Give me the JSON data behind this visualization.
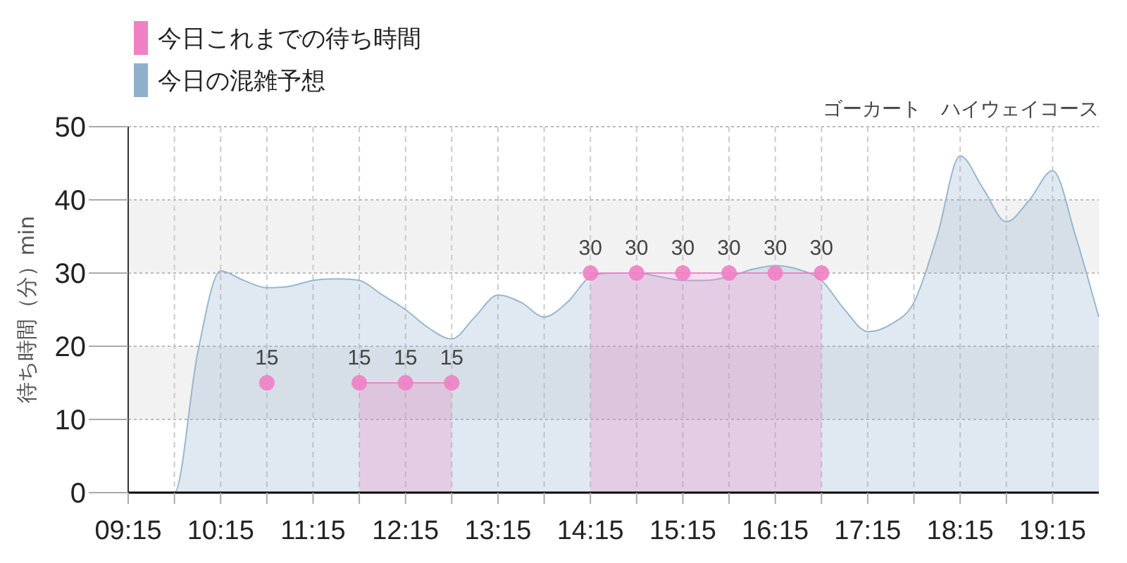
{
  "chart_data": {
    "type": "area",
    "title": "ゴーカート　ハイウェイコース",
    "ylabel": "待ち時間（分）min",
    "series": [
      {
        "type": "scatter",
        "color": "#f080c4",
        "data_labels": true,
        "x": [
          10.75
        ],
        "values": [
          15
        ]
      },
      {
        "name": "今日これまでの待ち時間",
        "color": "#f080c4",
        "marker": "circle",
        "data_labels": true,
        "x": [
          11.75,
          12.25,
          12.75,
          13.25,
          13.75,
          14.25,
          14.75,
          15.25,
          15.75,
          16.25,
          16.75
        ],
        "values": [
          15,
          15,
          15,
          null,
          null,
          30,
          30,
          30,
          30,
          30,
          30
        ]
      },
      {
        "name": "今日の混雑予想",
        "color": "#8fb0cc",
        "x": [
          9.25,
          9.5,
          9.75,
          10.0,
          10.25,
          10.5,
          10.75,
          11.0,
          11.25,
          11.5,
          11.75,
          12.0,
          12.25,
          12.5,
          12.75,
          13.0,
          13.25,
          13.5,
          13.75,
          14.0,
          14.25,
          14.5,
          14.75,
          15.0,
          15.25,
          15.5,
          15.75,
          16.0,
          16.25,
          16.5,
          16.75,
          17.0,
          17.25,
          17.5,
          17.75,
          18.0,
          18.25,
          18.5,
          18.75,
          19.0,
          19.25,
          19.5,
          19.75
        ],
        "values": [
          0,
          0,
          0,
          19,
          30.3,
          29,
          28,
          28.2,
          29,
          29.2,
          29,
          27,
          25,
          22.5,
          21,
          24,
          27,
          26,
          24,
          26,
          29.5,
          30,
          30,
          29.5,
          29,
          29,
          29.5,
          30.5,
          31,
          30.5,
          29,
          25,
          22,
          23,
          26,
          35,
          46,
          41.5,
          37,
          40,
          44,
          35,
          24
        ]
      }
    ],
    "xlim": [
      9.25,
      19.75
    ],
    "xticks": [
      {
        "value": 9.25,
        "label": "09:15"
      },
      {
        "value": 9.75,
        "label": null
      },
      {
        "value": 10.25,
        "label": "10:15"
      },
      {
        "value": 10.75,
        "label": null
      },
      {
        "value": 11.25,
        "label": "11:15"
      },
      {
        "value": 11.75,
        "label": null
      },
      {
        "value": 12.25,
        "label": "12:15"
      },
      {
        "value": 12.75,
        "label": null
      },
      {
        "value": 13.25,
        "label": "13:15"
      },
      {
        "value": 13.75,
        "label": null
      },
      {
        "value": 14.25,
        "label": "14:15"
      },
      {
        "value": 14.75,
        "label": null
      },
      {
        "value": 15.25,
        "label": "15:15"
      },
      {
        "value": 15.75,
        "label": null
      },
      {
        "value": 16.25,
        "label": "16:15"
      },
      {
        "value": 16.75,
        "label": null
      },
      {
        "value": 17.25,
        "label": "17:15"
      },
      {
        "value": 17.75,
        "label": null
      },
      {
        "value": 18.25,
        "label": "18:15"
      },
      {
        "value": 18.75,
        "label": null
      },
      {
        "value": 19.25,
        "label": "19:15"
      }
    ],
    "ylim": [
      0,
      50
    ],
    "yticks": [
      0,
      10,
      20,
      30,
      40,
      50
    ],
    "bands": [
      {
        "axis": "y",
        "from": 10,
        "to": 20,
        "color": "#f2f2f2"
      },
      {
        "axis": "y",
        "from": 30,
        "to": 40,
        "color": "#f2f2f2"
      }
    ],
    "grid": true,
    "legend": "top left"
  }
}
